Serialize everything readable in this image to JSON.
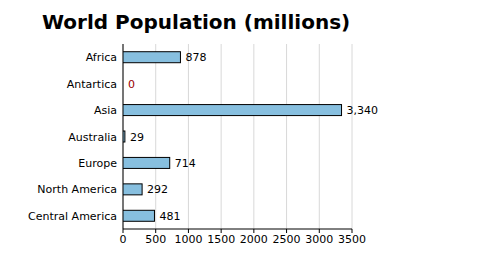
{
  "chart_data": {
    "type": "bar",
    "orientation": "horizontal",
    "title": "World Population (millions)",
    "categories": [
      "Africa",
      "Antartica",
      "Asia",
      "Australia",
      "Europe",
      "North America",
      "Central America"
    ],
    "values": [
      878,
      0,
      3340,
      29,
      714,
      292,
      481
    ],
    "value_labels": [
      "878",
      "0",
      "3,340",
      "29",
      "714",
      "292",
      "481"
    ],
    "color": "#87bfdf",
    "xlim": [
      0,
      3500
    ],
    "xticks": [
      0,
      500,
      1000,
      1500,
      2000,
      2500,
      3000,
      3500
    ],
    "grid": true,
    "data_labels": true
  }
}
